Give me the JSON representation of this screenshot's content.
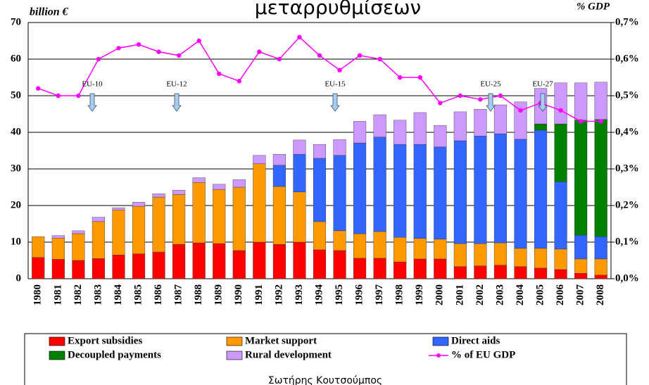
{
  "chart_data": {
    "type": "bar",
    "title": "μεταρρυθμίσεων",
    "y_label": "billion €",
    "y2_label": "% GDP",
    "footer": "Σωτήρης Κουτσούμπος",
    "categories": [
      "1980",
      "1981",
      "1982",
      "1983",
      "1984",
      "1985",
      "1986",
      "1987",
      "1988",
      "1989",
      "1990",
      "1991",
      "1992",
      "1993",
      "1994",
      "1995",
      "1996",
      "1997",
      "1998",
      "1999",
      "2000",
      "2001",
      "2002",
      "2003",
      "2004",
      "2005",
      "2006",
      "2007",
      "2008"
    ],
    "stacked": true,
    "series": [
      {
        "name": "Export subsidies",
        "color": "#ff0000",
        "values": [
          5.8,
          5.3,
          5.0,
          5.5,
          6.5,
          6.8,
          7.3,
          9.4,
          9.8,
          9.6,
          7.7,
          10,
          9.4,
          10,
          7.9,
          7.7,
          5.6,
          5.6,
          4.6,
          5.4,
          5.4,
          3.3,
          3.5,
          3.7,
          3.3,
          2.9,
          2.5,
          1.5,
          1
        ]
      },
      {
        "name": "Market support",
        "color": "#ff9900",
        "values": [
          5.7,
          5.8,
          7.3,
          10.1,
          12.3,
          13,
          15,
          13.6,
          16.5,
          14.8,
          17.3,
          21.4,
          15.8,
          13.7,
          7.7,
          5.4,
          6.7,
          7.3,
          6.7,
          5.6,
          5.4,
          6.3,
          6.1,
          6.1,
          5,
          5.4,
          5.6,
          3.9,
          4.4
        ]
      },
      {
        "name": "Direct aids",
        "color": "#3366ff",
        "values": [
          0,
          0,
          0,
          0,
          0,
          0,
          0,
          0,
          0,
          0,
          0,
          0,
          5.8,
          10.3,
          17.3,
          20.6,
          24.8,
          25.8,
          25.4,
          25.7,
          25.2,
          28.1,
          29.4,
          29.8,
          29.8,
          32.3,
          18.4,
          6.5,
          6.1
        ]
      },
      {
        "name": "Decoupled payments",
        "color": "#008000",
        "values": [
          0,
          0,
          0,
          0,
          0,
          0,
          0,
          0,
          0,
          0,
          0,
          0,
          0,
          0,
          0,
          0,
          0,
          0,
          0,
          0,
          0,
          0,
          0,
          0,
          0,
          1.7,
          15.8,
          31.4,
          32
        ]
      },
      {
        "name": "Rural development",
        "color": "#cc99ff",
        "values": [
          0,
          0.7,
          0.8,
          1.2,
          0.6,
          1.1,
          0.9,
          1.2,
          1.3,
          1.4,
          2.1,
          2.3,
          3.0,
          3.9,
          3.8,
          4.3,
          5.9,
          6.1,
          6.6,
          8.7,
          5.9,
          7.9,
          7.3,
          7.9,
          10.2,
          9.7,
          11.2,
          10.2,
          10.2
        ]
      },
      {
        "name": "% of EU GDP",
        "color": "#ff00ff",
        "type": "line",
        "axis": "y2",
        "values": [
          0.52,
          0.5,
          0.5,
          0.6,
          0.63,
          0.64,
          0.62,
          0.61,
          0.65,
          0.56,
          0.54,
          0.62,
          0.6,
          0.66,
          0.61,
          0.57,
          0.61,
          0.6,
          0.55,
          0.55,
          0.48,
          0.5,
          0.49,
          0.5,
          0.46,
          0.48,
          0.46,
          0.43,
          0.43
        ]
      }
    ],
    "ylim": [
      0,
      70
    ],
    "yticks": [
      0,
      10,
      20,
      30,
      40,
      50,
      60,
      70
    ],
    "y2lim": [
      0,
      0.7
    ],
    "y2ticks": [
      {
        "value": 0,
        "label": "0,0%"
      },
      {
        "value": 0.1,
        "label": "0,1%"
      },
      {
        "value": 0.2,
        "label": "0,2%"
      },
      {
        "value": 0.3,
        "label": "0,3%"
      },
      {
        "value": 0.4,
        "label": "0,4%"
      },
      {
        "value": 0.5,
        "label": "0,5%"
      },
      {
        "value": 0.6,
        "label": "0,6%"
      },
      {
        "value": 0.7,
        "label": "0,7%"
      }
    ],
    "grid": true,
    "annotations": [
      "EU-10",
      "EU-12",
      "EU-15",
      "EU-25",
      "EU-27"
    ],
    "legend": "bottom"
  }
}
